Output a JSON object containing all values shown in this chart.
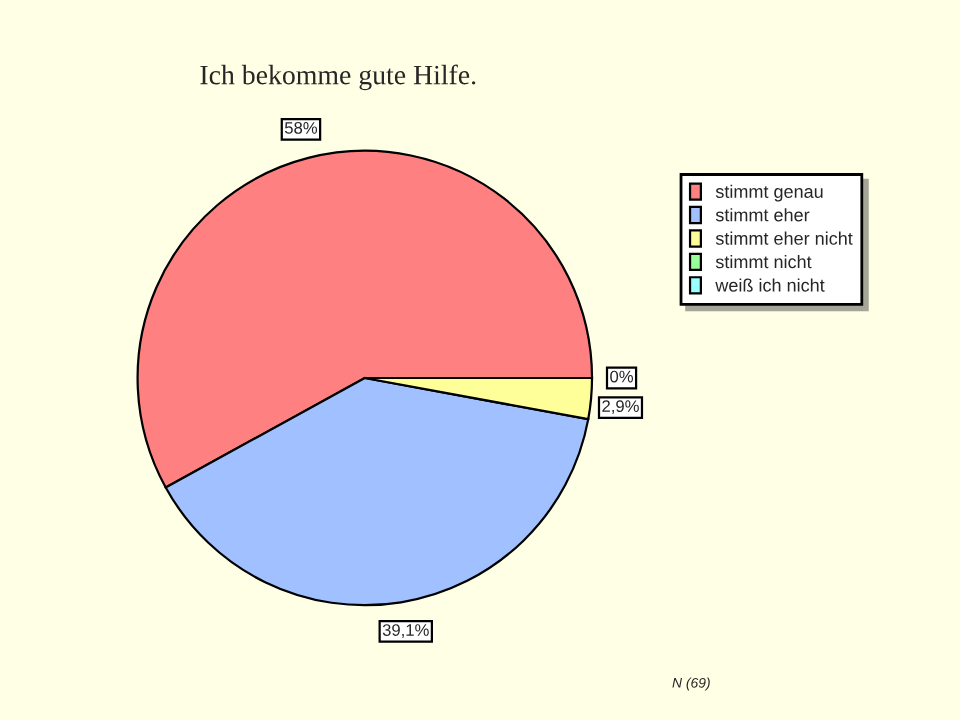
{
  "chart_data": {
    "type": "pie",
    "title": "Ich bekomme gute Hilfe.",
    "categories": [
      "stimmt genau",
      "stimmt eher",
      "stimmt eher nicht",
      "stimmt nicht",
      "weiß ich nicht"
    ],
    "values": [
      58,
      39.1,
      2.9,
      0,
      0
    ],
    "value_labels": [
      "58%",
      "39,1%",
      "2,9%",
      "0%",
      null
    ],
    "colors": [
      "#ff8080",
      "#a0c0ff",
      "#ffff99",
      "#99ff99",
      "#99ffff"
    ],
    "legend": "right",
    "annotations": [
      "N (69)"
    ]
  }
}
